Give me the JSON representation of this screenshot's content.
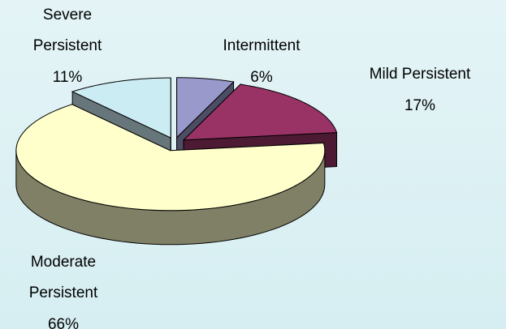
{
  "chart_data": {
    "type": "pie3d",
    "categories": [
      "Intermittent",
      "Mild Persistent",
      "Moderate Persistent",
      "Severe Persistent"
    ],
    "values": [
      6,
      17,
      66,
      11
    ],
    "value_labels": [
      "6%",
      "17%",
      "66%",
      "11%"
    ],
    "colors": [
      "#9999cc",
      "#993366",
      "#ffffcc",
      "#ccecf4"
    ]
  }
}
